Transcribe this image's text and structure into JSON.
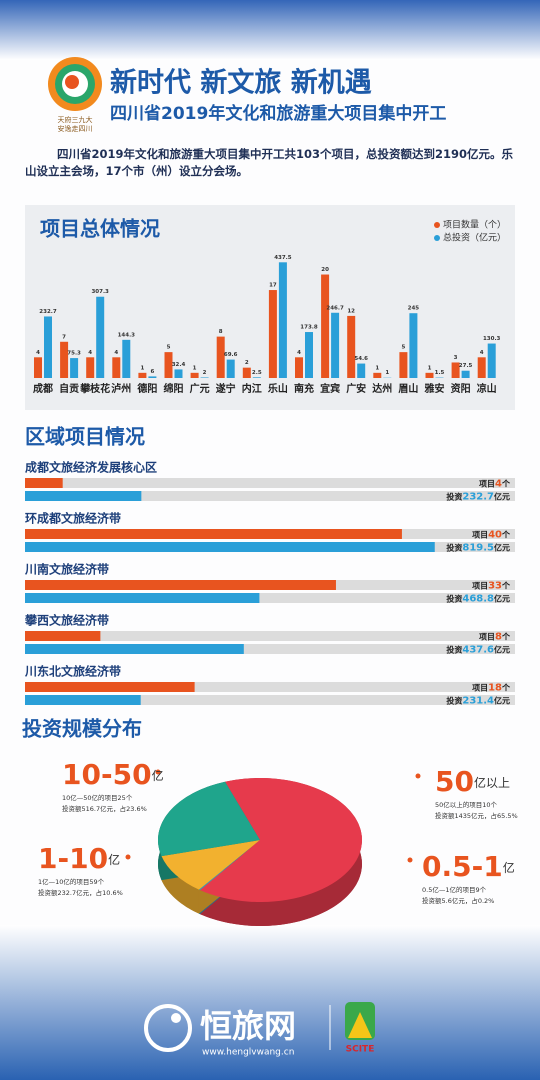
{
  "header": {
    "title": "新时代 新文旅 新机遇",
    "subtitle": "四川省2019年文化和旅游重大项目集中开工",
    "logo_text": [
      "天府三九大",
      "安逸走四川"
    ],
    "intro": "四川省2019年文化和旅游重大项目集中开工共103个项目，总投资额达到2190亿元。乐山设立主会场，17个市（州）设立分会场。"
  },
  "chart_data": [
    {
      "type": "bar",
      "title": "项目总体情况",
      "categories": [
        "成都",
        "自贡",
        "攀枝花",
        "泸州",
        "德阳",
        "绵阳",
        "广元",
        "遂宁",
        "内江",
        "乐山",
        "南充",
        "宜宾",
        "广安",
        "达州",
        "眉山",
        "雅安",
        "资阳",
        "凉山"
      ],
      "series": [
        {
          "name": "项目数量（个）",
          "color": "#e8541f",
          "values": [
            4,
            7,
            4,
            4,
            1,
            5,
            1,
            8,
            2,
            17,
            4,
            20,
            12,
            1,
            5,
            1,
            3,
            4
          ]
        },
        {
          "name": "总投资（亿元）",
          "color": "#2a9fd8",
          "axis": "y2",
          "values": [
            232.7,
            75.3,
            307.3,
            144.3,
            6,
            32.4,
            2,
            69.6,
            2.5,
            437.5,
            173.8,
            246.7,
            54.6,
            1,
            245,
            1.5,
            27.5,
            130.3
          ]
        }
      ],
      "ylim": [
        0,
        23
      ],
      "y2lim": [
        0,
        450
      ],
      "legend": "top-right"
    },
    {
      "type": "hbar",
      "title": "区域项目情况",
      "categories": [
        "成都文旅经济发展核心区",
        "环成都文旅经济带",
        "川南文旅经济带",
        "攀西文旅经济带",
        "川东北文旅经济带"
      ],
      "series": [
        {
          "name": "项目",
          "unit": "个",
          "color": "#e8541f",
          "values": [
            4,
            40,
            33,
            8,
            18
          ],
          "xlim": [
            0,
            52
          ]
        },
        {
          "name": "投资",
          "unit": "亿元",
          "color": "#2a9fd8",
          "values": [
            232.7,
            819.5,
            468.8,
            437.6,
            231.4
          ],
          "xlim": [
            0,
            980
          ]
        }
      ]
    },
    {
      "type": "pie",
      "title": "投资规模分布",
      "categories": [
        "50",
        "0.5-1",
        "1-10",
        "10-50"
      ],
      "units": [
        "亿以上",
        "亿",
        "亿",
        "亿"
      ],
      "values": [
        65.5,
        0.2,
        10.6,
        23.6
      ],
      "colors": [
        "#e63a4c",
        "#2a9fc9",
        "#f2b12f",
        "#1fa58c"
      ],
      "descriptions": [
        [
          "50亿以上的项目10个",
          "投资额1435亿元，占65.5%"
        ],
        [
          "0.5亿—1亿的项目9个",
          "投资额5.6亿元，占0.2%"
        ],
        [
          "1亿—10亿的项目59个",
          "投资额232.7亿元，占10.6%"
        ],
        [
          "10亿—50亿的项目25个",
          "投资额516.7亿元，占23.6%"
        ]
      ]
    }
  ],
  "footer": {
    "brand": "恒旅网",
    "url": "www.henglvwang.cn",
    "badge": "SCITE"
  }
}
